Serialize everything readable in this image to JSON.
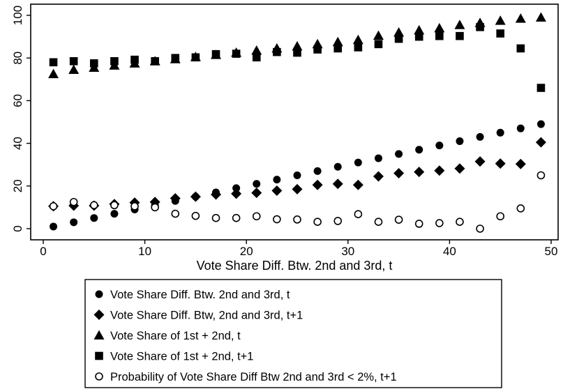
{
  "chart_data": {
    "type": "scatter",
    "title": "",
    "xlabel": "Vote Share Diff. Btw. 2nd and 3rd, t",
    "ylabel": "",
    "xlim": [
      0,
      50
    ],
    "ylim": [
      -4,
      103
    ],
    "xticks": [
      "0",
      "10",
      "20",
      "30",
      "40",
      "50"
    ],
    "yticks": [
      "0",
      "20",
      "40",
      "60",
      "80",
      "100"
    ],
    "grid": false,
    "legend_position": "bottom",
    "x": [
      1,
      3,
      5,
      7,
      9,
      11,
      13,
      15,
      17,
      19,
      21,
      23,
      25,
      27,
      29,
      31,
      33,
      35,
      37,
      39,
      41,
      43,
      45,
      47,
      49
    ],
    "series": [
      {
        "name": "Vote Share Diff. Btw. 2nd and 3rd, t",
        "marker": "filled-circle",
        "values": [
          1,
          3,
          5,
          7,
          9,
          11,
          13,
          15,
          17,
          19,
          21,
          23,
          25,
          27,
          29,
          31,
          33,
          35,
          37,
          39,
          41,
          43,
          45,
          47,
          49
        ]
      },
      {
        "name": "Vote Share Diff. Btw, 2nd and 3rd, t+1",
        "marker": "filled-diamond",
        "values": [
          10.5,
          10.8,
          10.8,
          11.5,
          12.2,
          12.5,
          14.2,
          15,
          16,
          16.4,
          16.8,
          17.8,
          18.5,
          20.5,
          21,
          20.5,
          24.5,
          26,
          26.6,
          27.2,
          28.2,
          31.5,
          30.5,
          30.3,
          40.5
        ]
      },
      {
        "name": "Vote Share of 1st + 2nd, t",
        "marker": "filled-triangle",
        "values": [
          72.5,
          74.5,
          75.5,
          76.5,
          77.5,
          78.5,
          79.5,
          80.5,
          81.5,
          82.5,
          83.5,
          84.5,
          85.5,
          86.5,
          87.5,
          88.5,
          90.5,
          92,
          93,
          94,
          95.5,
          96.5,
          97.5,
          98.5,
          99
        ]
      },
      {
        "name": "Vote Share of 1st + 2nd, t+1",
        "marker": "filled-square",
        "values": [
          78,
          78.5,
          77.5,
          78.5,
          79.2,
          78.5,
          80,
          80.3,
          81.8,
          82,
          80.3,
          82.8,
          82.5,
          84,
          84.5,
          85,
          86.5,
          89,
          90,
          90.3,
          90.3,
          94.5,
          91.5,
          84.5,
          66
        ]
      },
      {
        "name": "Probability of Vote Share Diff Btw 2nd and 3rd < 2%, t+1",
        "marker": "hollow-circle",
        "values": [
          10.5,
          12.5,
          11,
          11,
          10.5,
          10,
          7,
          6,
          5,
          5,
          5.8,
          4.4,
          4.3,
          3.2,
          3.6,
          6.8,
          3.2,
          4.2,
          2.3,
          2.6,
          3.2,
          0,
          5.8,
          9.5,
          25
        ]
      }
    ]
  }
}
